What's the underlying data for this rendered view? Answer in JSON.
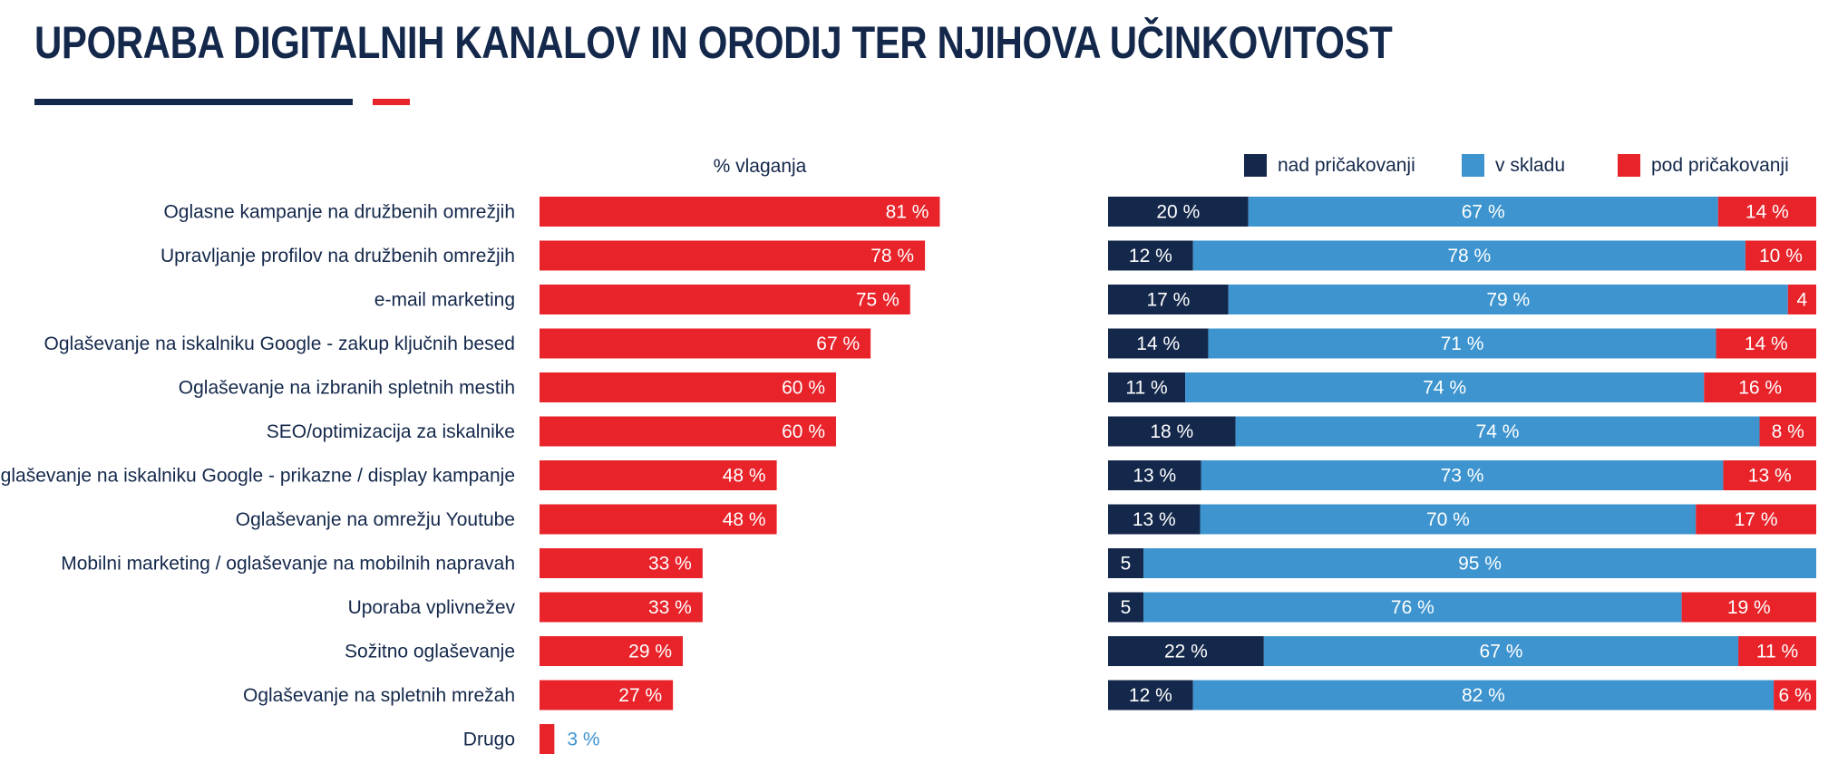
{
  "title": "UPORABA DIGITALNIH KANALOV IN ORODIJ TER NJIHOVA UČINKOVITOST",
  "chart_data": [
    {
      "type": "bar",
      "orientation": "horizontal",
      "title": "% vlaganja",
      "unit": "%",
      "color": "#e8232a",
      "xlim": [
        0,
        100
      ],
      "categories": [
        "Oglasne kampanje na družbenih omrežjih",
        "Upravljanje profilov na družbenih omrežjih",
        "e-mail marketing",
        "Oglaševanje na iskalniku Google - zakup ključnih besed",
        "Oglaševanje na izbranih spletnih mestih",
        "SEO/optimizacija za iskalnike",
        "Oglaševanje na iskalniku Google - prikazne / display kampanje",
        "Oglaševanje na omrežju Youtube",
        "Mobilni marketing / oglaševanje na mobilnih napravah",
        "Uporaba vplivnežev",
        "Sožitno oglaševanje",
        "Oglaševanje na spletnih mrežah",
        "Drugo"
      ],
      "values": [
        81,
        78,
        75,
        67,
        60,
        60,
        48,
        48,
        33,
        33,
        29,
        27,
        3
      ],
      "labels": [
        "81 %",
        "78 %",
        "75 %",
        "67 %",
        "60 %",
        "60 %",
        "48 %",
        "48 %",
        "33 %",
        "33 %",
        "29 %",
        "27 %",
        "3 %"
      ]
    },
    {
      "type": "bar",
      "orientation": "horizontal",
      "stacked": true,
      "unit": "%",
      "legend_position": "top",
      "categories": [
        "Oglasne kampanje na družbenih omrežjih",
        "Upravljanje profilov na družbenih omrežjih",
        "e-mail marketing",
        "Oglaševanje na iskalniku Google - zakup ključnih besed",
        "Oglaševanje na izbranih spletnih mestih",
        "SEO/optimizacija za iskalnike",
        "Oglaševanje na iskalniku Google - prikazne / display kampanje",
        "Oglaševanje na omrežju Youtube",
        "Mobilni marketing / oglaševanje na mobilnih napravah",
        "Uporaba vplivnežev",
        "Sožitno oglaševanje",
        "Oglaševanje na spletnih mrežah"
      ],
      "series": [
        {
          "name": "nad pričakovanji",
          "color": "#14284b",
          "values": [
            20,
            12,
            17,
            14,
            11,
            18,
            13,
            13,
            5,
            5,
            22,
            12
          ],
          "labels": [
            "20 %",
            "12 %",
            "17 %",
            "14 %",
            "11 %",
            "18 %",
            "13 %",
            "13 %",
            "5",
            "5",
            "22 %",
            "12 %"
          ]
        },
        {
          "name": "v skladu",
          "color": "#3d94cf",
          "values": [
            67,
            78,
            79,
            71,
            74,
            74,
            73,
            70,
            95,
            76,
            67,
            82
          ],
          "labels": [
            "67 %",
            "78 %",
            "79 %",
            "71 %",
            "74 %",
            "74 %",
            "73 %",
            "70 %",
            "95 %",
            "76 %",
            "67 %",
            "82 %"
          ]
        },
        {
          "name": "pod pričakovanji",
          "color": "#e8232a",
          "values": [
            14,
            10,
            4,
            14,
            16,
            8,
            13,
            17,
            0,
            19,
            11,
            6
          ],
          "labels": [
            "14 %",
            "10 %",
            "4",
            "14 %",
            "16 %",
            "8 %",
            "13 %",
            "17 %",
            "",
            "19 %",
            "11 %",
            "6 %"
          ]
        }
      ]
    }
  ]
}
